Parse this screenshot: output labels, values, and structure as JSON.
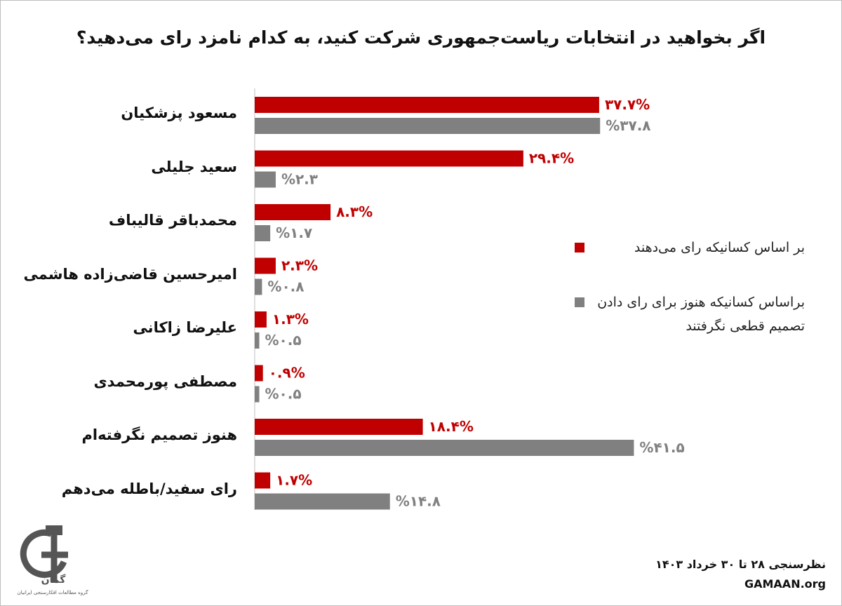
{
  "chart_data": {
    "type": "bar",
    "orientation": "horizontal",
    "title": "اگر بخواهید در انتخابات ریاست‌جمهوری شرکت کنید، به کدام نامزد رای می‌دهید؟",
    "categories": [
      "مسعود پزشکیان",
      "سعید جلیلی",
      "محمدباقر قالیباف",
      "امیرحسین قاضی‌زاده هاشمی",
      "علیرضا زاکانی",
      "مصطفی پورمحمدی",
      "هنوز تصمیم نگرفته‌ام",
      "رای سفید/باطله می‌دهم"
    ],
    "series": [
      {
        "name": "بر اساس کسانیکه رای می‌دهند",
        "color": "#c00000",
        "values": [
          37.7,
          29.4,
          8.3,
          2.3,
          1.3,
          0.9,
          18.4,
          1.7
        ],
        "value_labels": [
          "۳۷.۷%",
          "۲۹.۴%",
          "۸.۳%",
          "۲.۳%",
          "۱.۳%",
          "۰.۹%",
          "۱۸.۴%",
          "۱.۷%"
        ]
      },
      {
        "name": "براساس کسانیکه هنوز برای رای دادن تصمیم قطعی نگرفتند",
        "color": "#808080",
        "values": [
          37.8,
          2.3,
          1.7,
          0.8,
          0.5,
          0.5,
          41.5,
          14.8
        ],
        "value_labels": [
          "%۳۷.۸",
          "%۲.۳",
          "%۱.۷",
          "%۰.۸",
          "%۰.۵",
          "%۰.۵",
          "%۴۱.۵",
          "%۱۴.۸"
        ]
      }
    ],
    "xlim": [
      0,
      45
    ],
    "footer": [
      "نظرسنجی ۲۸ تا ۳۰ خرداد ۱۴۰۳",
      "GAMAAN.org"
    ],
    "logo": {
      "name": "گمان",
      "tagline": "گروه مطالعات افکارسنجی ایرانیان"
    }
  }
}
